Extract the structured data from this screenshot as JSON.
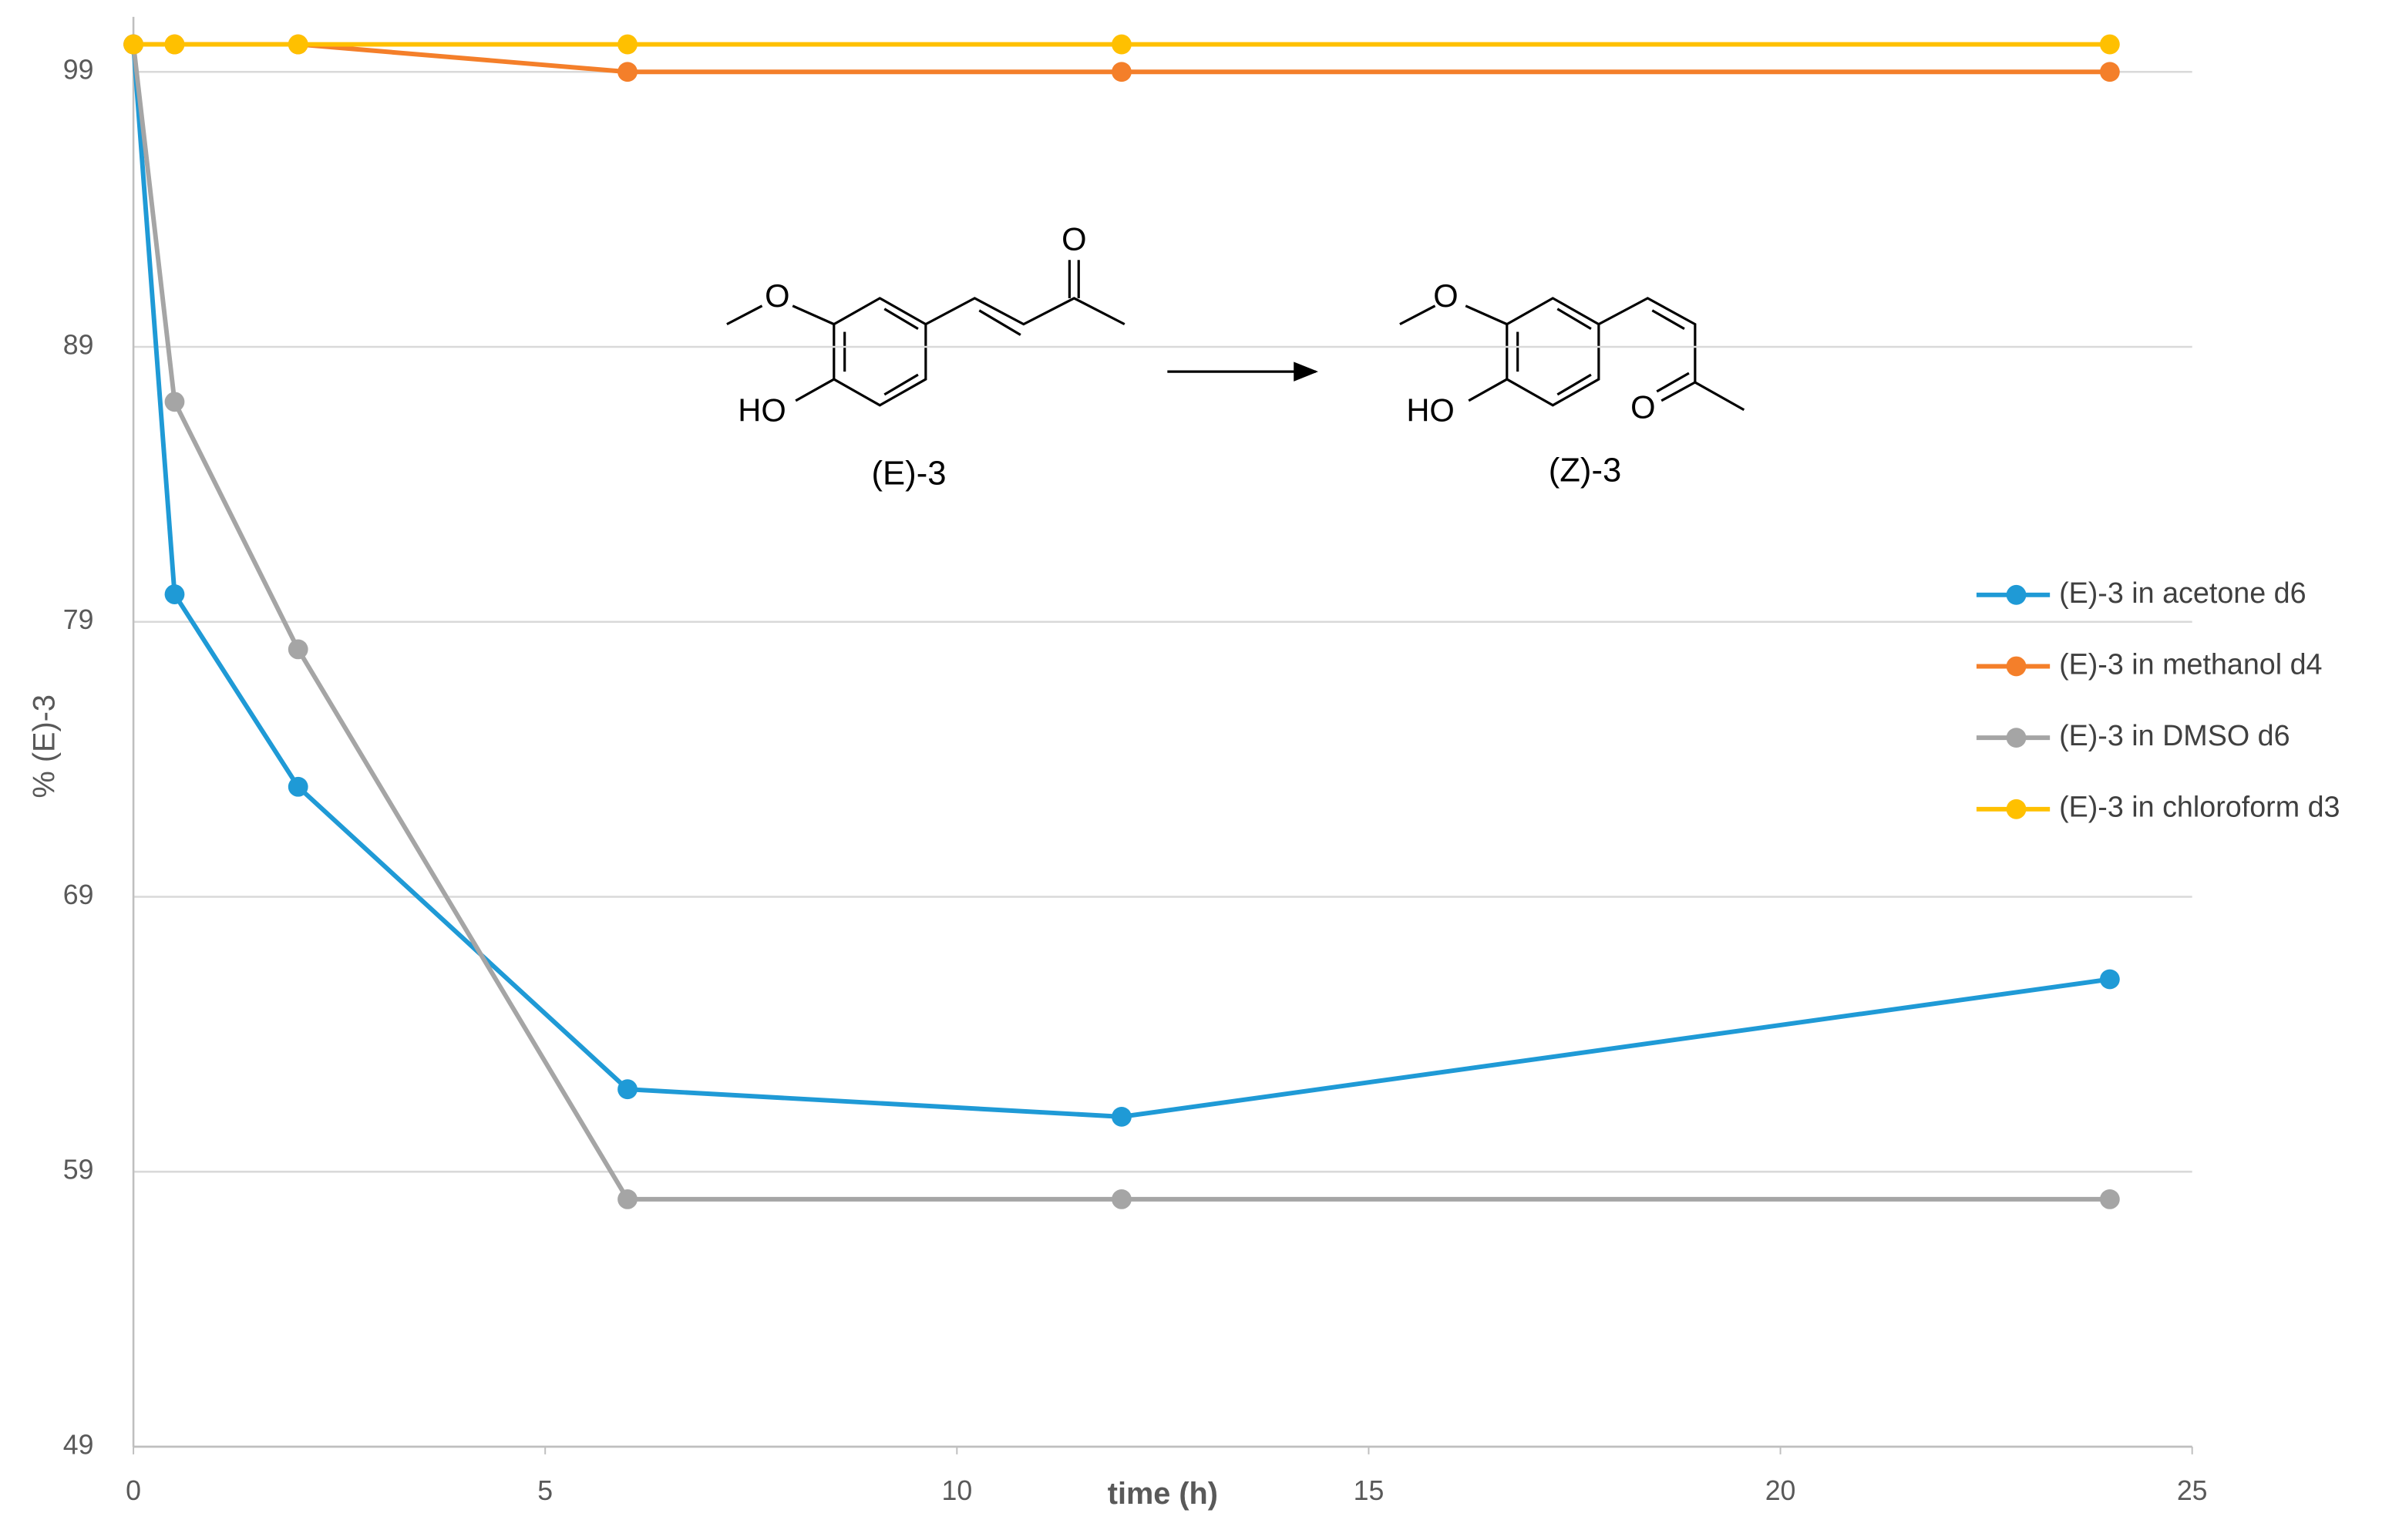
{
  "chart_data": {
    "type": "line",
    "y_label": "% (E)-3",
    "x_label": "time (h)",
    "x": [
      0,
      0.5,
      2,
      6,
      12,
      24
    ],
    "series": [
      {
        "name": "(E)-3 in acetone d6",
        "color": "#1f9ad6",
        "values": [
          100,
          80,
          73,
          62,
          61,
          66
        ]
      },
      {
        "name": "(E)-3 in methanol d4",
        "color": "#f47f2a",
        "values": [
          100,
          100,
          100,
          99,
          99,
          99
        ]
      },
      {
        "name": "(E)-3 in DMSO d6",
        "color": "#a5a5a5",
        "values": [
          100,
          87,
          78,
          58,
          58,
          58
        ]
      },
      {
        "name": "(E)-3 in chloroform d3",
        "color": "#ffc000",
        "values": [
          100,
          100,
          100,
          100,
          100,
          100
        ]
      }
    ],
    "xlim": [
      0,
      25
    ],
    "xticks": [
      0,
      5,
      10,
      15,
      20,
      25
    ],
    "ylim": [
      49,
      101
    ],
    "yticks": [
      49,
      59,
      69,
      79,
      89,
      99
    ],
    "grid": true,
    "legend": "right",
    "annotations": [
      "O",
      "HO",
      "(E)-3",
      "O",
      "O",
      "HO",
      "(Z)-3",
      "O"
    ]
  }
}
